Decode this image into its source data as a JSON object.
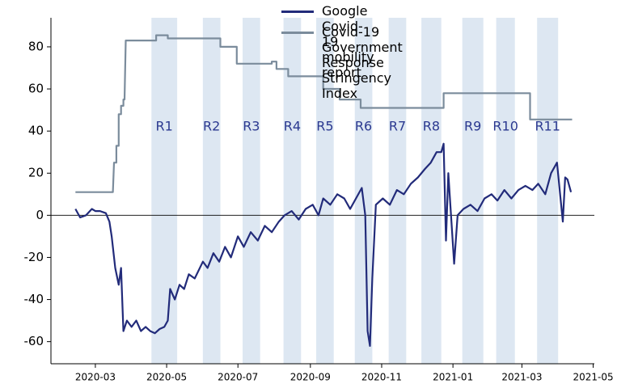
{
  "chart_data": {
    "type": "line",
    "xlim": [
      "2020-01-23",
      "2021-05-02"
    ],
    "ylim": [
      -70.5,
      93.8
    ],
    "xticks": [
      {
        "value": "2020-03-01",
        "label": "2020-03"
      },
      {
        "value": "2020-05-01",
        "label": "2020-05"
      },
      {
        "value": "2020-07-01",
        "label": "2020-07"
      },
      {
        "value": "2020-09-01",
        "label": "2020-09"
      },
      {
        "value": "2020-11-01",
        "label": "2020-11"
      },
      {
        "value": "2021-01-01",
        "label": "2021-01"
      },
      {
        "value": "2021-03-01",
        "label": "2021-03"
      },
      {
        "value": "2021-05-01",
        "label": "2021-05"
      }
    ],
    "yticks": [
      -60,
      -40,
      -20,
      0,
      20,
      40,
      60,
      80
    ],
    "legend": "upper right",
    "regions": [
      {
        "label": "R1",
        "start": "2020-04-18",
        "end": "2020-05-10"
      },
      {
        "label": "R2",
        "start": "2020-06-01",
        "end": "2020-06-16"
      },
      {
        "label": "R3",
        "start": "2020-07-05",
        "end": "2020-07-20"
      },
      {
        "label": "R4",
        "start": "2020-08-09",
        "end": "2020-08-24"
      },
      {
        "label": "R5",
        "start": "2020-09-06",
        "end": "2020-09-21"
      },
      {
        "label": "R6",
        "start": "2020-10-09",
        "end": "2020-10-24"
      },
      {
        "label": "R7",
        "start": "2020-11-07",
        "end": "2020-11-22"
      },
      {
        "label": "R8",
        "start": "2020-12-05",
        "end": "2020-12-22"
      },
      {
        "label": "R9",
        "start": "2021-01-09",
        "end": "2021-01-27"
      },
      {
        "label": "R10",
        "start": "2021-02-07",
        "end": "2021-02-23"
      },
      {
        "label": "R11",
        "start": "2021-03-14",
        "end": "2021-04-01"
      }
    ],
    "series": [
      {
        "name": "Google Covid-19 mobility report",
        "color": "#222b7a",
        "x": [
          "2020-02-13",
          "2020-02-17",
          "2020-02-22",
          "2020-02-27",
          "2020-03-01",
          "2020-03-05",
          "2020-03-10",
          "2020-03-13",
          "2020-03-15",
          "2020-03-18",
          "2020-03-21",
          "2020-03-23",
          "2020-03-25",
          "2020-03-28",
          "2020-04-01",
          "2020-04-05",
          "2020-04-09",
          "2020-04-13",
          "2020-04-17",
          "2020-04-21",
          "2020-04-25",
          "2020-04-29",
          "2020-05-02",
          "2020-05-04",
          "2020-05-08",
          "2020-05-12",
          "2020-05-16",
          "2020-05-20",
          "2020-05-25",
          "2020-06-01",
          "2020-06-05",
          "2020-06-10",
          "2020-06-15",
          "2020-06-20",
          "2020-06-25",
          "2020-07-01",
          "2020-07-06",
          "2020-07-12",
          "2020-07-18",
          "2020-07-24",
          "2020-07-30",
          "2020-08-05",
          "2020-08-10",
          "2020-08-16",
          "2020-08-22",
          "2020-08-28",
          "2020-09-03",
          "2020-09-08",
          "2020-09-12",
          "2020-09-18",
          "2020-09-24",
          "2020-09-30",
          "2020-10-05",
          "2020-10-10",
          "2020-10-15",
          "2020-10-18",
          "2020-10-20",
          "2020-10-22",
          "2020-10-24",
          "2020-10-27",
          "2020-11-02",
          "2020-11-08",
          "2020-11-14",
          "2020-11-20",
          "2020-11-26",
          "2020-12-02",
          "2020-12-08",
          "2020-12-13",
          "2020-12-18",
          "2020-12-22",
          "2020-12-24",
          "2020-12-26",
          "2020-12-28",
          "2021-01-02",
          "2021-01-05",
          "2021-01-10",
          "2021-01-16",
          "2021-01-22",
          "2021-01-28",
          "2021-02-03",
          "2021-02-08",
          "2021-02-14",
          "2021-02-20",
          "2021-02-26",
          "2021-03-04",
          "2021-03-10",
          "2021-03-15",
          "2021-03-21",
          "2021-03-26",
          "2021-03-31",
          "2021-04-05",
          "2021-04-07",
          "2021-04-09",
          "2021-04-12"
        ],
        "values": [
          3,
          -1,
          0,
          3,
          2,
          2,
          1,
          -3,
          -10,
          -25,
          -33,
          -25,
          -55,
          -50,
          -53,
          -50,
          -55,
          -53,
          -55,
          -56,
          -54,
          -53,
          -50,
          -35,
          -40,
          -33,
          -35,
          -28,
          -30,
          -22,
          -25,
          -18,
          -22,
          -15,
          -20,
          -10,
          -15,
          -8,
          -12,
          -5,
          -8,
          -3,
          0,
          2,
          -2,
          3,
          5,
          0,
          8,
          5,
          10,
          8,
          3,
          8,
          13,
          0,
          -55,
          -62,
          -30,
          5,
          8,
          5,
          12,
          10,
          15,
          18,
          22,
          25,
          30,
          30,
          34,
          -12,
          20,
          -23,
          0,
          3,
          5,
          2,
          8,
          10,
          7,
          12,
          8,
          12,
          14,
          12,
          15,
          10,
          20,
          25,
          -3,
          18,
          17,
          11
        ]
      },
      {
        "name": "Covid-19 Government Response\n Stringency Index",
        "color": "#7b8c9c",
        "x": [
          "2020-02-13",
          "2020-03-16",
          "2020-03-17",
          "2020-03-19",
          "2020-03-19",
          "2020-03-21",
          "2020-03-21",
          "2020-03-23",
          "2020-03-23",
          "2020-03-25",
          "2020-03-25",
          "2020-03-26",
          "2020-03-27",
          "2020-04-22",
          "2020-04-22",
          "2020-05-02",
          "2020-05-02",
          "2020-06-16",
          "2020-06-16",
          "2020-06-30",
          "2020-06-30",
          "2020-07-30",
          "2020-07-30",
          "2020-08-03",
          "2020-08-03",
          "2020-08-13",
          "2020-08-13",
          "2020-09-12",
          "2020-09-12",
          "2020-09-26",
          "2020-09-26",
          "2020-10-14",
          "2020-10-14",
          "2020-12-24",
          "2020-12-24",
          "2021-03-08",
          "2021-03-08",
          "2021-04-13"
        ],
        "values": [
          11,
          11,
          25,
          25,
          33,
          33,
          48,
          48,
          52,
          52,
          55,
          55,
          83,
          83,
          85.5,
          85.5,
          84,
          84,
          80,
          80,
          72,
          72,
          73,
          73,
          69.5,
          69.5,
          66,
          66,
          60,
          60,
          55,
          55,
          51,
          51,
          58,
          58,
          45.5,
          45.5
        ]
      }
    ]
  }
}
